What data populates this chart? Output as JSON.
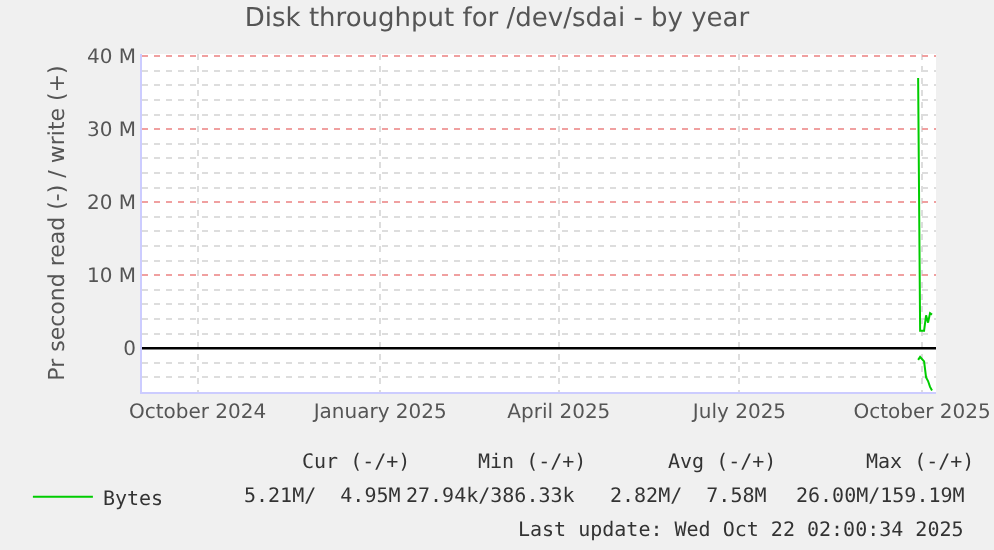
{
  "chart_data": {
    "type": "line",
    "title": "Disk throughput for /dev/sdai - by year",
    "ylabel": "Pr second read (-) / write (+)",
    "xlim": [
      "2024-09-17",
      "2025-10-22"
    ],
    "xticks": [
      {
        "value": "2024-10-15",
        "label": "October 2024"
      },
      {
        "value": "2025-01-15",
        "label": "January 2025"
      },
      {
        "value": "2025-04-15",
        "label": "April 2025"
      },
      {
        "value": "2025-07-15",
        "label": "July 2025"
      },
      {
        "value": "2025-10-15",
        "label": "October 2025"
      }
    ],
    "ylim": [
      -6,
      40.3
    ],
    "yticks": [
      {
        "value": 0,
        "label": "0"
      },
      {
        "value": 10,
        "label": "10 M"
      },
      {
        "value": 20,
        "label": "20 M"
      },
      {
        "value": 30,
        "label": "30 M"
      },
      {
        "value": 40,
        "label": "40 M"
      }
    ],
    "x": [
      "2025-10-13",
      "2025-10-14",
      "2025-10-16",
      "2025-10-17",
      "2025-10-18",
      "2025-10-19",
      "2025-10-20"
    ],
    "series": [
      {
        "name": "Bytes",
        "color": "#00cc00",
        "values": [
          37,
          2.4,
          2.4,
          4.5,
          3.5,
          4.8,
          4.6
        ]
      },
      {
        "color": "#00cc00",
        "values": [
          -1.6,
          -1.2,
          -1.8,
          -4,
          -4.5,
          -5.3,
          -5.8
        ]
      }
    ],
    "ref_lines": [
      {
        "axis": "y",
        "value": 0,
        "color": "#000000"
      }
    ],
    "annotations": [
      "Cur (-/+)",
      "Min (-/+)",
      "Avg (-/+)",
      "Max (-/+)",
      "5.21M/  4.95M",
      "27.94k/386.33k",
      "2.82M/  7.58M",
      "26.00M/159.19M",
      "Last update: Wed Oct 22 02:00:34 2025"
    ],
    "grid": true,
    "legend": "bottom left",
    "marker": "none",
    "line_style": "solid"
  }
}
